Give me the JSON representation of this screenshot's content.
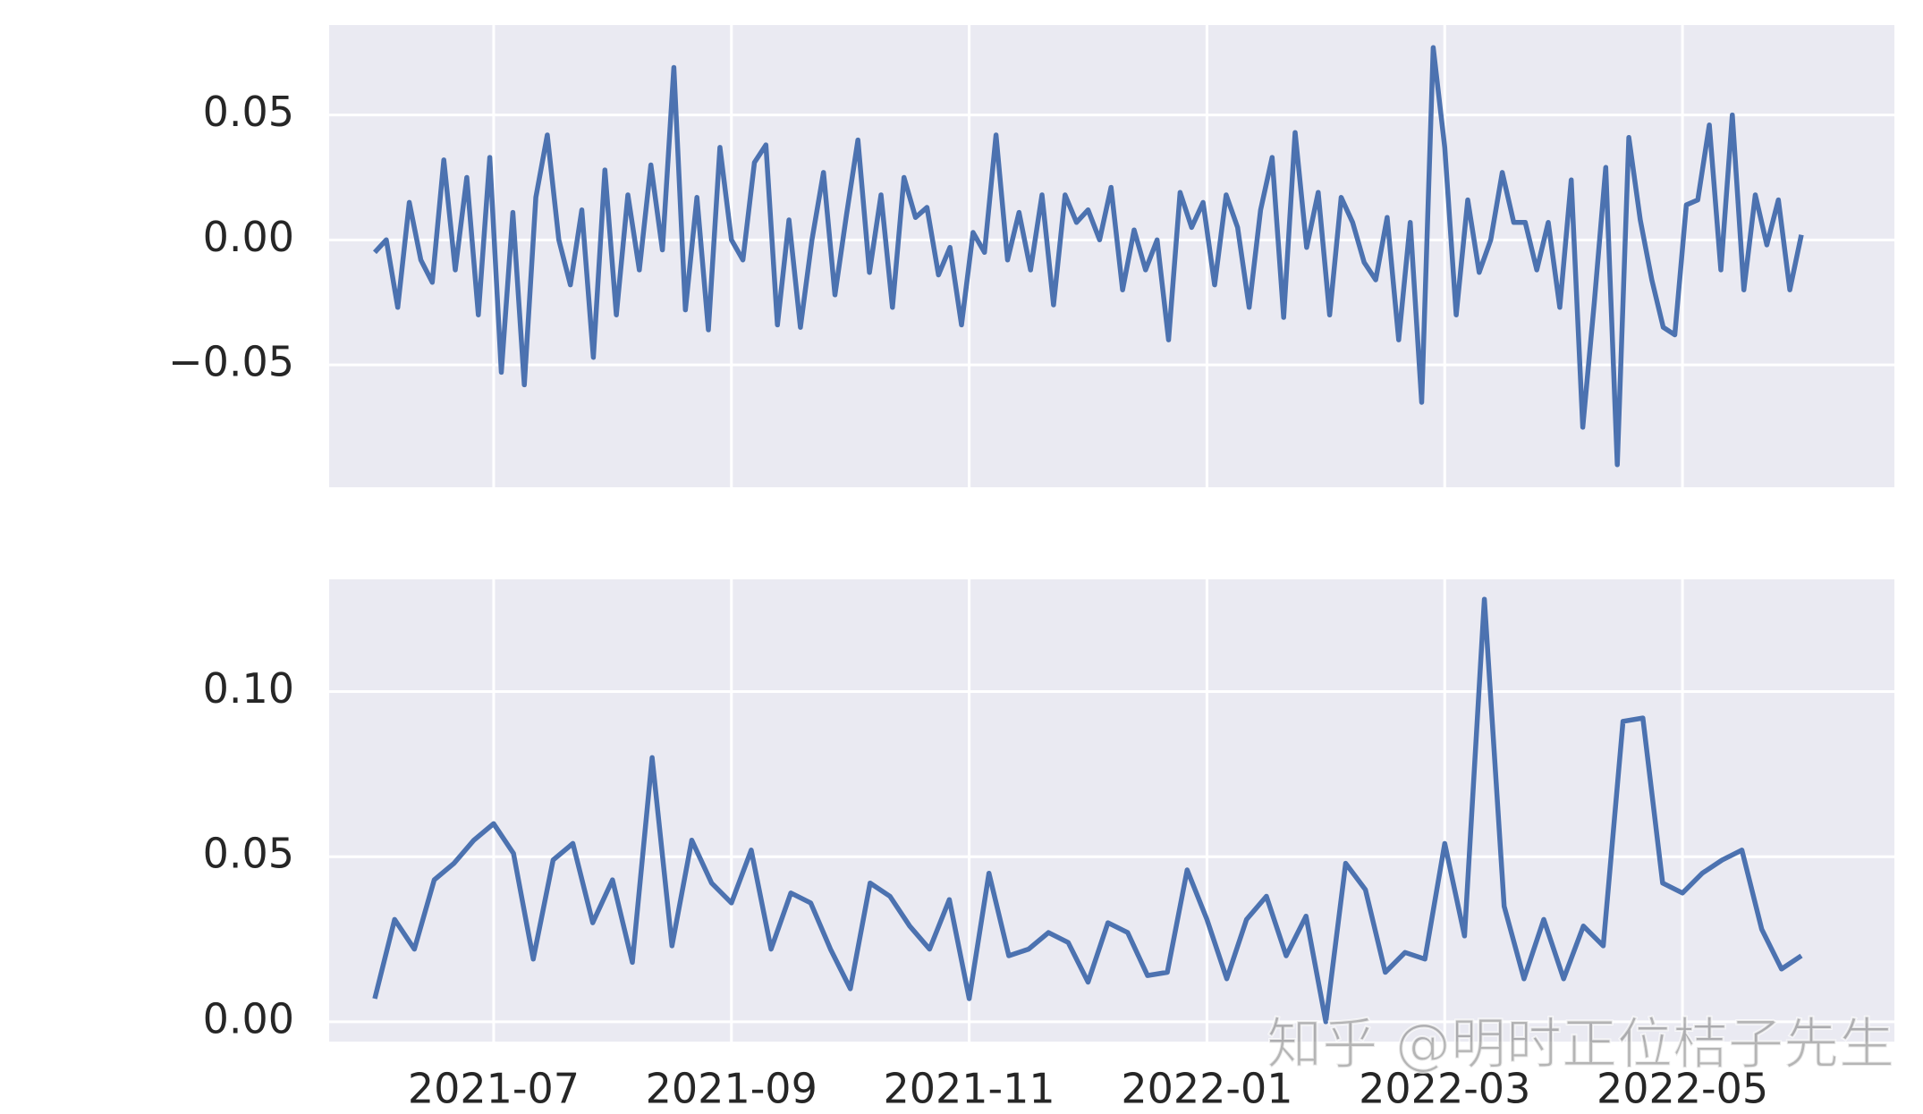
{
  "chart_data": [
    {
      "type": "line",
      "color": "#4c72b0",
      "grid": true,
      "ylim": [
        -0.099,
        0.086
      ],
      "yticks": [
        {
          "value": -0.05,
          "label": "−0.05"
        },
        {
          "value": 0,
          "label": "0.00"
        },
        0.05
      ],
      "values": [
        -0.005,
        0.0,
        -0.027,
        0.015,
        -0.008,
        -0.017,
        0.032,
        -0.012,
        0.025,
        -0.03,
        0.033,
        -0.053,
        0.011,
        -0.058,
        0.017,
        0.042,
        0.0,
        -0.018,
        0.012,
        -0.047,
        0.028,
        -0.03,
        0.018,
        -0.012,
        0.03,
        -0.004,
        0.069,
        -0.028,
        0.017,
        -0.036,
        0.037,
        0.0,
        -0.008,
        0.031,
        0.038,
        -0.034,
        0.008,
        -0.035,
        0.0,
        0.027,
        -0.022,
        0.01,
        0.04,
        -0.013,
        0.018,
        -0.027,
        0.025,
        0.009,
        0.013,
        -0.014,
        -0.003,
        -0.034,
        0.003,
        -0.005,
        0.042,
        -0.008,
        0.011,
        -0.012,
        0.018,
        -0.026,
        0.018,
        0.007,
        0.012,
        0.0,
        0.021,
        -0.02,
        0.004,
        -0.012,
        0.0,
        -0.04,
        0.019,
        0.005,
        0.015,
        -0.018,
        0.018,
        0.005,
        -0.027,
        0.012,
        0.033,
        -0.031,
        0.043,
        -0.003,
        0.019,
        -0.03,
        0.017,
        0.007,
        -0.009,
        -0.016,
        0.009,
        -0.04,
        0.007,
        -0.065,
        0.077,
        0.037,
        -0.03,
        0.016,
        -0.013,
        0.0,
        0.027,
        0.007,
        0.007,
        -0.012,
        0.007,
        -0.027,
        0.024,
        -0.075,
        -0.025,
        0.029,
        -0.09,
        0.041,
        0.008,
        -0.016,
        -0.035,
        -0.038,
        0.014,
        0.016,
        0.046,
        -0.012,
        0.05,
        -0.02,
        0.018,
        -0.002,
        0.016,
        -0.02,
        0.002
      ]
    },
    {
      "type": "line",
      "color": "#4c72b0",
      "grid": true,
      "xlim": [
        "2021-06",
        "2022-06"
      ],
      "xticks": [
        "2021-07",
        "2021-09",
        "2021-11",
        "2022-01",
        "2022-03",
        "2022-05"
      ],
      "ylim": [
        -0.006,
        0.134
      ],
      "yticks": [
        {
          "value": 0,
          "label": "0.00"
        },
        0.05,
        {
          "value": 0.1,
          "label": "0.10"
        }
      ],
      "values": [
        0.007,
        0.031,
        0.022,
        0.043,
        0.048,
        0.055,
        0.06,
        0.051,
        0.019,
        0.049,
        0.054,
        0.03,
        0.043,
        0.018,
        0.08,
        0.023,
        0.055,
        0.042,
        0.036,
        0.052,
        0.022,
        0.039,
        0.036,
        0.022,
        0.01,
        0.042,
        0.038,
        0.029,
        0.022,
        0.037,
        0.007,
        0.045,
        0.02,
        0.022,
        0.027,
        0.024,
        0.012,
        0.03,
        0.027,
        0.014,
        0.015,
        0.046,
        0.031,
        0.013,
        0.031,
        0.038,
        0.02,
        0.032,
        0.0,
        0.048,
        0.04,
        0.015,
        0.021,
        0.019,
        0.054,
        0.026,
        0.128,
        0.035,
        0.013,
        0.031,
        0.013,
        0.029,
        0.023,
        0.091,
        0.092,
        0.042,
        0.039,
        0.045,
        0.049,
        0.052,
        0.028,
        0.016,
        0.02
      ]
    }
  ],
  "watermark": "知乎 @明时正位桔子先生"
}
